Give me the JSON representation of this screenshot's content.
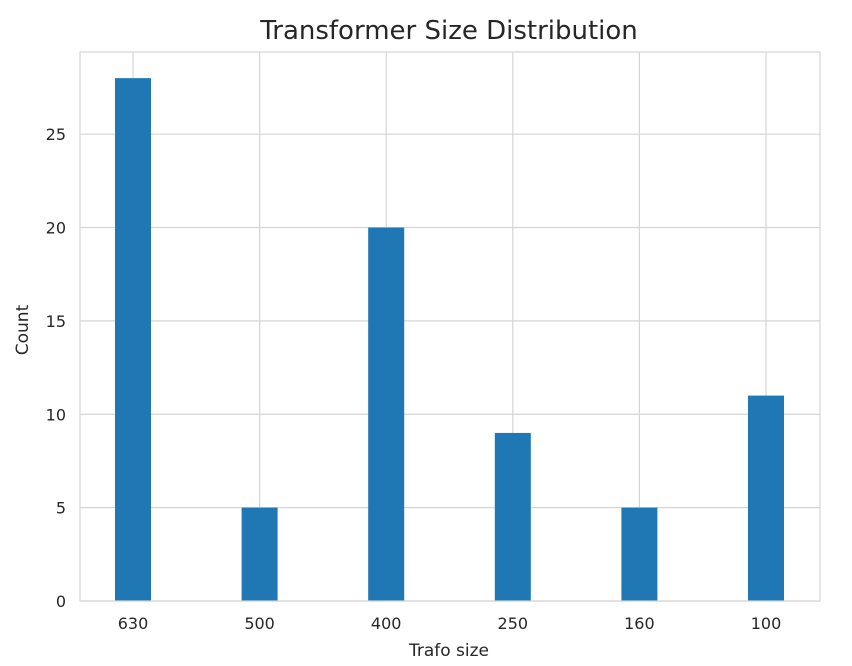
{
  "chart_data": {
    "type": "bar",
    "title": "Transformer Size Distribution",
    "xlabel": "Trafo size",
    "ylabel": "Count",
    "categories": [
      "630",
      "500",
      "400",
      "250",
      "160",
      "100"
    ],
    "values": [
      28,
      5,
      20,
      9,
      5,
      11
    ],
    "ylim": [
      0,
      29.4
    ],
    "yticks": [
      0,
      5,
      10,
      15,
      20,
      25
    ],
    "grid": true,
    "bar_color": "#1f77b4"
  }
}
